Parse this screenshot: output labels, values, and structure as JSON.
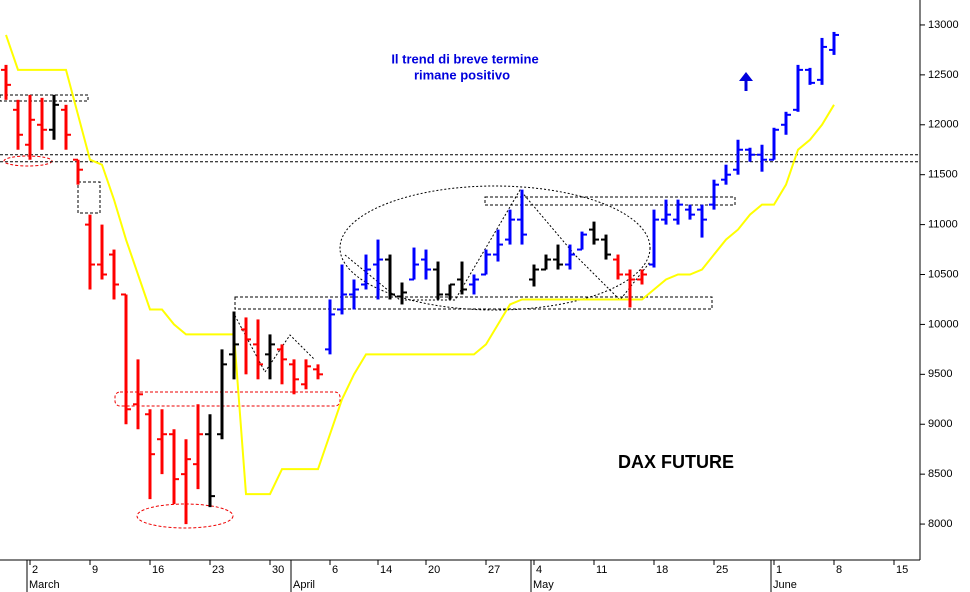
{
  "chart_data": {
    "type": "ohlc",
    "annotations": [
      "Il trend di breve termine",
      "rimane positivo",
      "DAX FUTURE"
    ],
    "categories": [
      null,
      null,
      "2",
      null,
      null,
      null,
      null,
      "9",
      null,
      null,
      null,
      null,
      "16",
      null,
      null,
      null,
      null,
      "23",
      null,
      null,
      null,
      null,
      "30",
      null,
      null,
      null,
      null,
      "6",
      null,
      null,
      null,
      "14",
      null,
      null,
      null,
      "20",
      null,
      null,
      null,
      null,
      "27",
      null,
      null,
      null,
      "4",
      null,
      null,
      null,
      null,
      "11",
      null,
      null,
      null,
      null,
      "18",
      null,
      null,
      null,
      null,
      "25",
      null,
      null,
      null,
      null,
      "1",
      null,
      null,
      null,
      null,
      "8",
      null,
      null,
      null,
      null,
      "15"
    ],
    "month_labels": [
      {
        "label": "March",
        "start": 2
      },
      {
        "label": "April",
        "start": 24
      },
      {
        "label": "May",
        "start": 44
      },
      {
        "label": "June",
        "start": 64
      }
    ],
    "open": [
      12550,
      12150,
      11800,
      12000,
      11950,
      12150,
      11650,
      11000,
      10600,
      10700,
      10300,
      9200,
      9100,
      8850,
      8900,
      8500,
      8600,
      8900,
      8900,
      9700,
      9950,
      9800,
      9700,
      9750,
      9600,
      9400,
      9550,
      9750,
      10150,
      10300,
      10400,
      10600,
      10650,
      10280,
      10450,
      10650,
      10550,
      10300,
      10450,
      10400,
      10500,
      10700,
      10850,
      11050,
      10450,
      10550,
      10650,
      10600,
      10750,
      10950,
      10850,
      10650,
      10500,
      10450,
      10600,
      11050,
      11050,
      11150,
      11150,
      11200,
      11450,
      11550,
      11750,
      11700,
      11650,
      12000,
      12150,
      12550,
      12450,
      12750,
      null,
      null,
      null,
      null,
      null
    ],
    "high": [
      12600,
      12250,
      12300,
      12270,
      12300,
      12200,
      11650,
      11100,
      11000,
      10750,
      10300,
      9650,
      9150,
      9150,
      8950,
      8850,
      9200,
      9100,
      9750,
      10130,
      10070,
      10050,
      9900,
      9800,
      9650,
      9650,
      9600,
      10250,
      10600,
      10450,
      10700,
      10850,
      10700,
      10420,
      10770,
      10750,
      10630,
      10400,
      10630,
      10500,
      10750,
      10950,
      11150,
      11350,
      10600,
      10700,
      10800,
      10800,
      10930,
      11030,
      10900,
      10700,
      10550,
      10550,
      11150,
      11250,
      11250,
      11200,
      11200,
      11450,
      11600,
      11850,
      11770,
      11800,
      11970,
      12130,
      12600,
      12570,
      12870,
      12930,
      null,
      null,
      null,
      null,
      null
    ],
    "low": [
      12250,
      11750,
      11650,
      11750,
      11850,
      11750,
      11400,
      10350,
      10450,
      10250,
      9000,
      8950,
      8250,
      8500,
      8200,
      8000,
      8350,
      8170,
      8850,
      9450,
      9500,
      9450,
      9450,
      9400,
      9300,
      9350,
      9450,
      9700,
      10100,
      10150,
      10350,
      10250,
      10250,
      10200,
      10450,
      10450,
      10250,
      10250,
      10300,
      10300,
      10500,
      10630,
      10800,
      10800,
      10380,
      10550,
      10550,
      10550,
      10750,
      10800,
      10650,
      10450,
      10170,
      10400,
      10570,
      11000,
      11000,
      11050,
      10870,
      11150,
      11400,
      11500,
      11630,
      11530,
      11650,
      11900,
      12130,
      12400,
      12400,
      12700,
      null,
      null,
      null,
      null,
      null
    ],
    "close": [
      12400,
      11900,
      12050,
      11950,
      12200,
      11900,
      11550,
      10600,
      10500,
      10400,
      9150,
      9300,
      8700,
      8900,
      8450,
      8650,
      8900,
      8280,
      9600,
      9800,
      9850,
      9600,
      9800,
      9650,
      9450,
      9580,
      9500,
      10100,
      10300,
      10350,
      10550,
      10650,
      10300,
      10320,
      10600,
      10550,
      10300,
      10400,
      10350,
      10450,
      10700,
      10800,
      11050,
      10900,
      10550,
      10650,
      10600,
      10700,
      10900,
      10850,
      10700,
      10500,
      10450,
      10500,
      11050,
      11100,
      11200,
      11100,
      11050,
      11400,
      11500,
      11750,
      11700,
      11650,
      11950,
      12100,
      12550,
      12420,
      12780,
      12900,
      null,
      null,
      null,
      null,
      null
    ],
    "colors": [
      "#ff0000",
      "#ff0000",
      "#ff0000",
      "#ff0000",
      "#000000",
      "#ff0000",
      "#ff0000",
      "#ff0000",
      "#ff0000",
      "#ff0000",
      "#ff0000",
      "#ff0000",
      "#ff0000",
      "#ff0000",
      "#ff0000",
      "#ff0000",
      "#ff0000",
      "#000000",
      "#000000",
      "#000000",
      "#ff0000",
      "#ff0000",
      "#000000",
      "#ff0000",
      "#ff0000",
      "#ff0000",
      "#ff0000",
      "#0000ff",
      "#0000ff",
      "#0000ff",
      "#0000ff",
      "#0000ff",
      "#000000",
      "#000000",
      "#0000ff",
      "#0000ff",
      "#000000",
      "#000000",
      "#000000",
      "#0000ff",
      "#0000ff",
      "#0000ff",
      "#0000ff",
      "#0000ff",
      "#000000",
      "#000000",
      "#000000",
      "#0000ff",
      "#0000ff",
      "#000000",
      "#000000",
      "#ff0000",
      "#ff0000",
      "#ff0000",
      "#0000ff",
      "#0000ff",
      "#0000ff",
      "#0000ff",
      "#0000ff",
      "#0000ff",
      "#0000ff",
      "#0000ff",
      "#0000ff",
      "#0000ff",
      "#0000ff",
      "#0000ff",
      "#0000ff",
      "#0000ff",
      "#0000ff",
      "#0000ff",
      null,
      null,
      null,
      null,
      null
    ],
    "lines": [
      {
        "color": "#ffff00",
        "values": [
          12900,
          12550,
          12550,
          12550,
          12550,
          12550,
          12100,
          11650,
          11600,
          11250,
          10850,
          10500,
          10150,
          10150,
          10000,
          9900,
          9900,
          9900,
          9900,
          9900,
          8300,
          8300,
          8300,
          8550,
          8550,
          8550,
          8550,
          8900,
          9250,
          9500,
          9700,
          9700,
          9700,
          9700,
          9700,
          9700,
          9700,
          9700,
          9700,
          9700,
          9800,
          10000,
          10200,
          10250,
          10250,
          10250,
          10250,
          10250,
          10250,
          10250,
          10250,
          10250,
          10250,
          10250,
          10350,
          10450,
          10500,
          10500,
          10550,
          10700,
          10850,
          10950,
          11100,
          11200,
          11200,
          11400,
          11750,
          11850,
          12000,
          12200,
          null,
          null,
          null,
          null,
          null
        ]
      }
    ],
    "hlines": [
      11700,
      11630
    ],
    "ylim": [
      7640,
      13250
    ],
    "yticks": [
      8000,
      8500,
      9000,
      9500,
      10000,
      10500,
      11000,
      11500,
      12000,
      12500,
      13000
    ]
  }
}
